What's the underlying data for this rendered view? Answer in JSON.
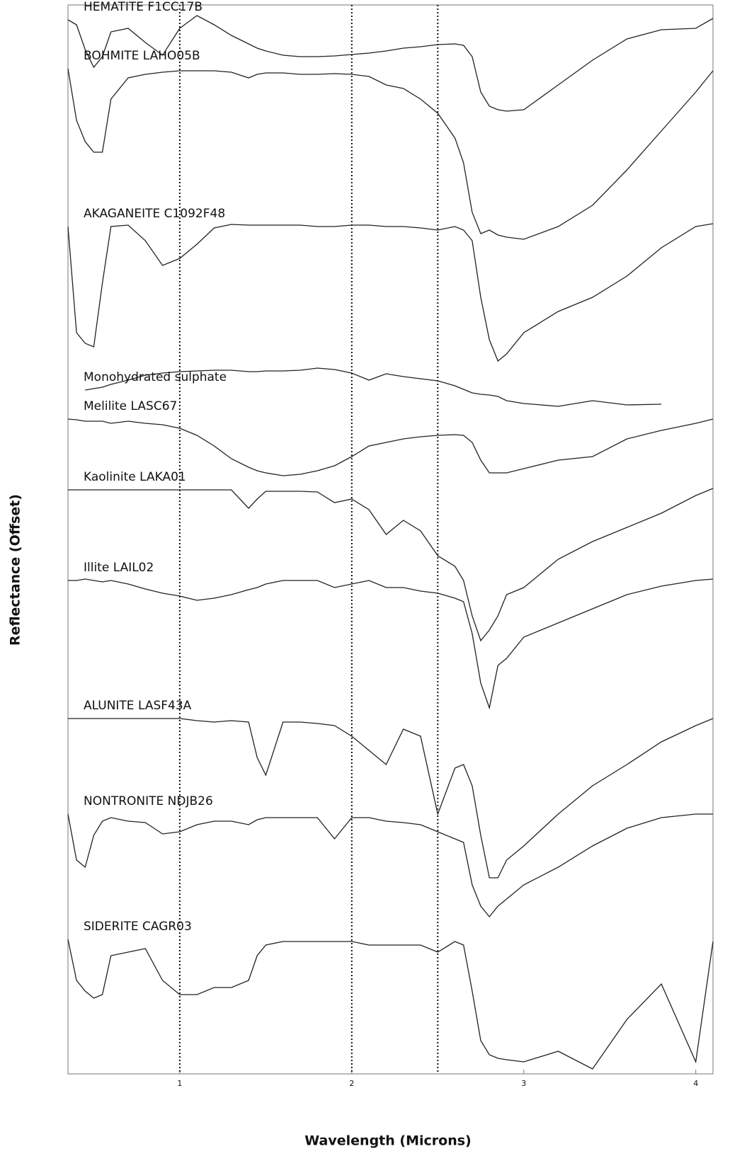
{
  "chart_data": {
    "type": "line",
    "x_label": "Wavelength (Microns)",
    "y_label": "Reflectance (Offset)",
    "xlim": [
      0.35,
      4.1
    ],
    "xticks": [
      1,
      2,
      3,
      4
    ],
    "ylim": [
      0,
      151
    ],
    "grid": false,
    "reference_lines_x": [
      1,
      2,
      2.5
    ],
    "x": [
      0.35,
      0.4,
      0.45,
      0.5,
      0.55,
      0.6,
      0.7,
      0.8,
      0.9,
      1.0,
      1.1,
      1.2,
      1.3,
      1.4,
      1.45,
      1.5,
      1.6,
      1.7,
      1.8,
      1.9,
      2.0,
      2.1,
      2.2,
      2.3,
      2.4,
      2.5,
      2.6,
      2.65,
      2.7,
      2.75,
      2.8,
      2.85,
      2.9,
      3.0,
      3.2,
      3.4,
      3.6,
      3.8,
      4.0,
      4.1
    ],
    "series": [
      {
        "name": "HEMATITE F1CC17B",
        "color": "#222222",
        "values": [
          148.9,
          148.2,
          144.7,
          142.2,
          143.7,
          147.2,
          147.7,
          145.7,
          143.9,
          147.7,
          149.5,
          148.2,
          146.7,
          145.5,
          144.9,
          144.5,
          143.9,
          143.7,
          143.7,
          143.8,
          144.0,
          144.2,
          144.5,
          144.9,
          145.1,
          145.4,
          145.5,
          145.3,
          143.7,
          138.7,
          136.7,
          136.2,
          136.0,
          136.2,
          139.7,
          143.2,
          146.2,
          147.5,
          147.7,
          149.1
        ]
      },
      {
        "name": "BOHMITE LAHO05B",
        "color": "#222222",
        "values": [
          142.0,
          134.7,
          131.7,
          130.2,
          130.2,
          137.7,
          140.7,
          141.2,
          141.5,
          141.7,
          141.7,
          141.7,
          141.5,
          140.7,
          141.2,
          141.4,
          141.4,
          141.2,
          141.2,
          141.3,
          141.2,
          140.9,
          139.7,
          139.2,
          137.7,
          135.7,
          132.2,
          128.7,
          121.7,
          118.7,
          119.2,
          118.5,
          118.2,
          117.9,
          119.7,
          122.7,
          127.7,
          133.2,
          138.7,
          141.7
        ]
      },
      {
        "name": "AKAGANEITE C1092F48",
        "color": "#222222",
        "values": [
          119.7,
          104.7,
          103.2,
          102.7,
          111.7,
          119.7,
          119.9,
          117.7,
          114.2,
          115.2,
          117.2,
          119.5,
          120.0,
          119.9,
          119.9,
          119.9,
          119.9,
          119.9,
          119.7,
          119.7,
          119.9,
          119.9,
          119.7,
          119.7,
          119.5,
          119.2,
          119.7,
          119.2,
          117.7,
          109.7,
          103.7,
          100.7,
          101.7,
          104.7,
          107.7,
          109.7,
          112.7,
          116.7,
          119.7,
          120.1
        ]
      },
      {
        "name": "Monohydrated sulphate",
        "color": "#222222",
        "values": [
          null,
          null,
          96.6,
          96.8,
          97.0,
          97.4,
          98.0,
          98.7,
          99.0,
          99.2,
          99.3,
          99.4,
          99.4,
          99.2,
          99.2,
          99.3,
          99.3,
          99.4,
          99.7,
          99.5,
          99.0,
          98.0,
          98.9,
          98.5,
          98.2,
          97.9,
          97.2,
          96.7,
          96.2,
          96.0,
          95.9,
          95.7,
          95.1,
          94.7,
          94.3,
          95.1,
          94.5,
          94.6,
          null,
          null
        ]
      },
      {
        "name": "Melilite LASC67",
        "color": "#222222",
        "values": [
          92.5,
          92.4,
          92.2,
          92.2,
          92.2,
          91.9,
          92.2,
          91.9,
          91.7,
          91.2,
          90.2,
          88.7,
          86.9,
          85.7,
          85.2,
          84.9,
          84.5,
          84.7,
          85.2,
          85.9,
          87.2,
          88.7,
          89.2,
          89.7,
          90.0,
          90.2,
          90.3,
          90.2,
          89.2,
          86.7,
          84.9,
          84.9,
          84.9,
          85.5,
          86.7,
          87.2,
          89.7,
          90.9,
          91.9,
          92.5
        ]
      },
      {
        "name": "Kaolinite LAKA01",
        "color": "#222222",
        "values": [
          82.5,
          82.5,
          82.5,
          82.5,
          82.5,
          82.5,
          82.5,
          82.5,
          82.5,
          82.5,
          82.5,
          82.5,
          82.5,
          79.9,
          81.2,
          82.3,
          82.3,
          82.3,
          82.2,
          80.7,
          81.2,
          79.7,
          76.2,
          78.2,
          76.7,
          73.2,
          71.7,
          69.7,
          64.7,
          61.2,
          62.7,
          64.7,
          67.7,
          68.7,
          72.7,
          75.2,
          77.2,
          79.2,
          81.7,
          82.7
        ]
      },
      {
        "name": "Illite LAIL02",
        "color": "#222222",
        "values": [
          69.7,
          69.7,
          69.9,
          69.7,
          69.5,
          69.7,
          69.2,
          68.5,
          67.9,
          67.5,
          66.9,
          67.2,
          67.7,
          68.4,
          68.7,
          69.2,
          69.7,
          69.7,
          69.7,
          68.7,
          69.2,
          69.7,
          68.7,
          68.7,
          68.2,
          67.9,
          67.2,
          66.7,
          62.2,
          55.2,
          51.7,
          57.7,
          58.7,
          61.7,
          63.7,
          65.7,
          67.7,
          68.9,
          69.7,
          69.9
        ]
      },
      {
        "name": "ALUNITE LASF43A",
        "color": "#222222",
        "values": [
          50.2,
          50.2,
          50.2,
          50.2,
          50.2,
          50.2,
          50.2,
          50.2,
          50.2,
          50.2,
          49.9,
          49.7,
          49.9,
          49.7,
          44.7,
          42.2,
          49.7,
          49.7,
          49.5,
          49.2,
          47.7,
          45.7,
          43.7,
          48.7,
          47.7,
          36.7,
          43.2,
          43.7,
          40.7,
          33.7,
          27.7,
          27.7,
          30.2,
          32.2,
          36.7,
          40.7,
          43.7,
          46.9,
          49.2,
          50.2
        ]
      },
      {
        "name": "NONTRONITE NDJB26",
        "color": "#222222",
        "values": [
          36.7,
          30.2,
          29.2,
          33.7,
          35.7,
          36.2,
          35.7,
          35.5,
          33.9,
          34.2,
          35.2,
          35.7,
          35.7,
          35.2,
          35.9,
          36.2,
          36.2,
          36.2,
          36.2,
          33.2,
          36.2,
          36.2,
          35.7,
          35.5,
          35.2,
          34.2,
          33.2,
          32.7,
          26.7,
          23.7,
          22.2,
          23.7,
          24.7,
          26.7,
          29.2,
          32.2,
          34.7,
          36.2,
          36.7,
          36.7
        ]
      },
      {
        "name": "SIDERITE CAGR03",
        "color": "#222222",
        "values": [
          19.0,
          13.2,
          11.7,
          10.7,
          11.2,
          16.7,
          17.2,
          17.7,
          13.2,
          11.2,
          11.2,
          12.2,
          12.2,
          13.2,
          16.7,
          18.2,
          18.7,
          18.7,
          18.7,
          18.7,
          18.7,
          18.2,
          18.2,
          18.2,
          18.2,
          17.2,
          18.7,
          18.2,
          11.7,
          4.7,
          2.7,
          2.2,
          2.0,
          1.7,
          3.2,
          0.7,
          7.7,
          12.7,
          1.7,
          18.7
        ]
      }
    ]
  }
}
